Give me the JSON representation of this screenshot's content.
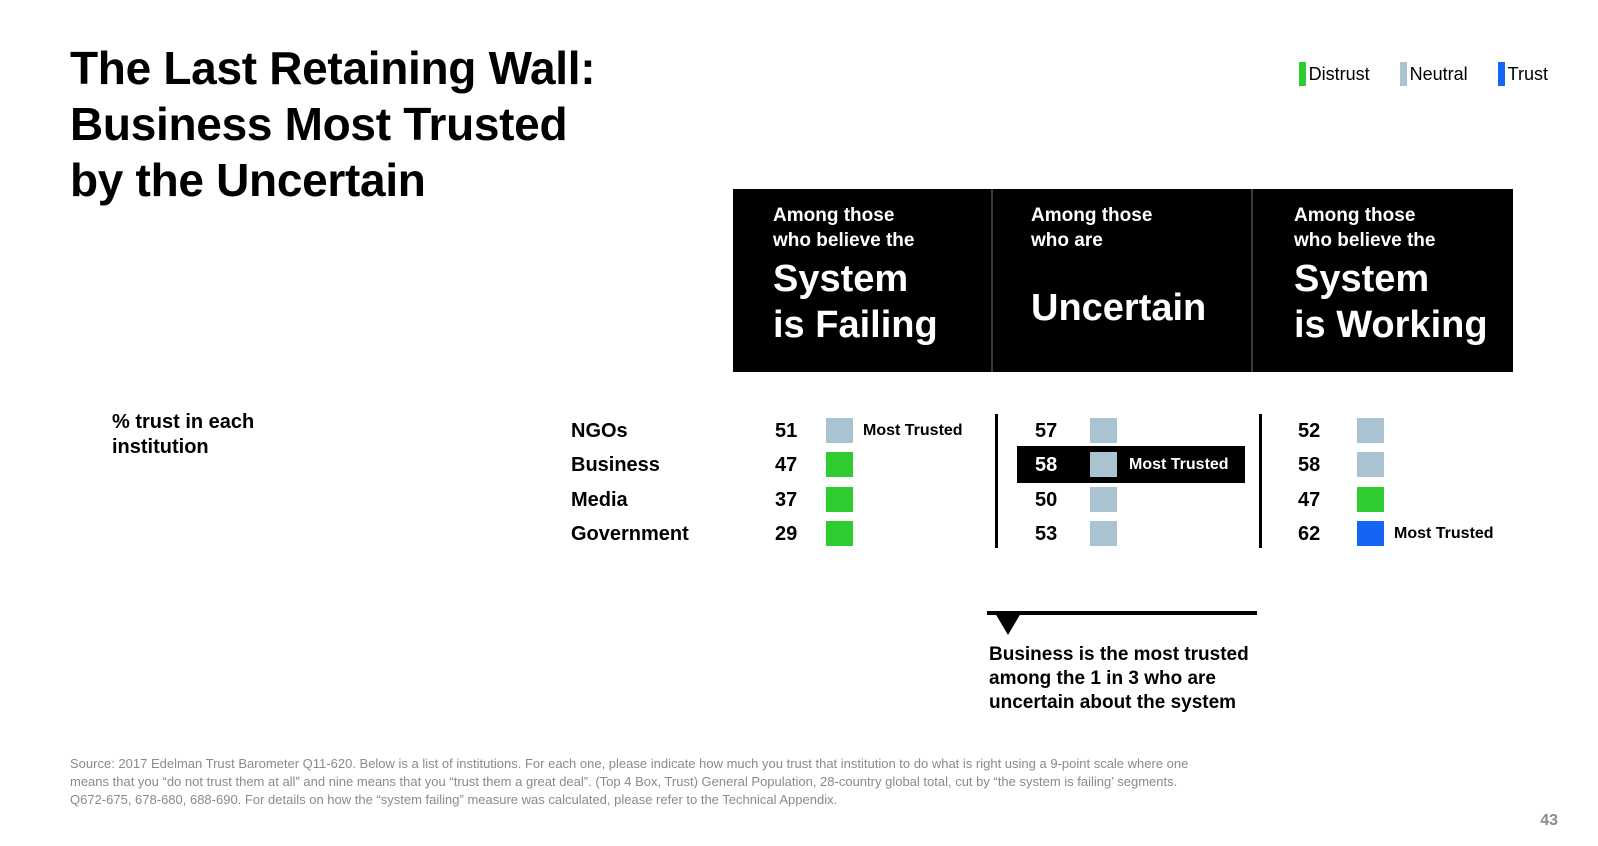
{
  "title": [
    "The Last Retaining Wall:",
    "Business Most Trusted",
    "by the Uncertain"
  ],
  "legend": [
    {
      "label": "Distrust",
      "color": "#2ecc2e"
    },
    {
      "label": "Neutral",
      "color": "#a9c3d0"
    },
    {
      "label": "Trust",
      "color": "#1565f5"
    }
  ],
  "y_label": "% trust in each institution",
  "chart_data": {
    "type": "table",
    "row_header": "% trust in each institution",
    "categories": [
      "NGOs",
      "Business",
      "Media",
      "Government"
    ],
    "series": [
      {
        "intro": [
          "Among those",
          "who believe the"
        ],
        "name": [
          "System",
          "is Failing"
        ],
        "values": [
          51,
          47,
          37,
          29
        ],
        "levels": [
          "neutral",
          "distrust",
          "distrust",
          "distrust"
        ],
        "most_trusted_index": 0
      },
      {
        "intro": [
          "Among those",
          "who are"
        ],
        "name": [
          "Uncertain"
        ],
        "values": [
          57,
          58,
          50,
          53
        ],
        "levels": [
          "neutral",
          "neutral",
          "neutral",
          "neutral"
        ],
        "most_trusted_index": 1
      },
      {
        "intro": [
          "Among those",
          "who believe the"
        ],
        "name": [
          "System",
          "is Working"
        ],
        "values": [
          52,
          58,
          47,
          62
        ],
        "levels": [
          "neutral",
          "neutral",
          "distrust",
          "trust"
        ],
        "most_trusted_index": 3
      }
    ],
    "level_colors": {
      "distrust": "#2ecc2e",
      "neutral": "#a9c3d0",
      "trust": "#1565f5"
    },
    "most_trusted_label": "Most Trusted"
  },
  "callout": "Business is the most trusted among the 1 in 3 who are uncertain about the system",
  "source": "Source: 2017 Edelman Trust Barometer Q11-620. Below is a list of institutions. For each one, please indicate how much you trust that institution to do what is right using a 9-point scale where one means that you “do not trust them at all” and nine means that you “trust them a great deal”. (Top 4 Box, Trust) General Population, 28-country global total, cut by “the system is failing’ segments. Q672-675, 678-680, 688-690. For details on how the “system failing” measure was calculated, please refer to the Technical Appendix.",
  "page_number": "43"
}
